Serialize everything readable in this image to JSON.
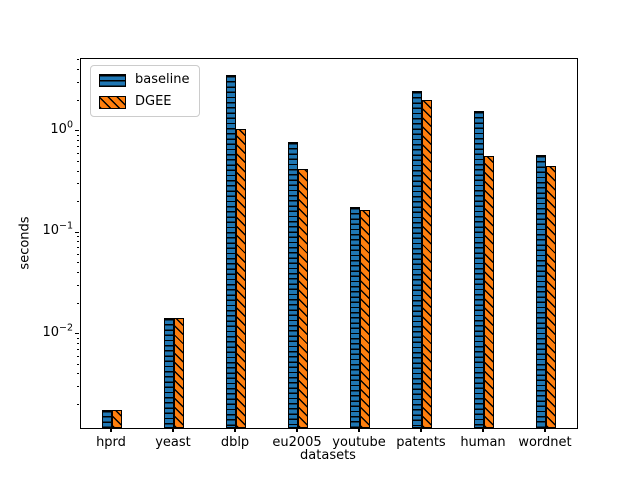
{
  "figure": {
    "background": "#ffffff"
  },
  "chart_data": {
    "type": "bar",
    "title": "",
    "xlabel": "datasets",
    "ylabel": "seconds",
    "yscale": "log",
    "ylim": [
      0.0012,
      5.2
    ],
    "grid": false,
    "legend_position": "upper left",
    "categories": [
      "hprd",
      "yeast",
      "dblp",
      "eu2005",
      "youtube",
      "patents",
      "human",
      "wordnet"
    ],
    "series": [
      {
        "name": "baseline",
        "color": "#1f77b4",
        "hatch": "horizontal",
        "values": [
          0.0018,
          0.0145,
          3.6,
          0.79,
          0.18,
          2.5,
          1.6,
          0.59
        ]
      },
      {
        "name": "DGEE",
        "color": "#ff7f0e",
        "hatch": "diagonal",
        "values": [
          0.0018,
          0.0145,
          1.05,
          0.43,
          0.17,
          2.05,
          0.57,
          0.46
        ]
      }
    ],
    "yticks": [
      {
        "base": "10",
        "exp": "0",
        "value": 1
      },
      {
        "base": "10",
        "exp": "−1",
        "value": 0.1
      },
      {
        "base": "10",
        "exp": "−2",
        "value": 0.01
      }
    ],
    "edge_color": "#000000"
  }
}
